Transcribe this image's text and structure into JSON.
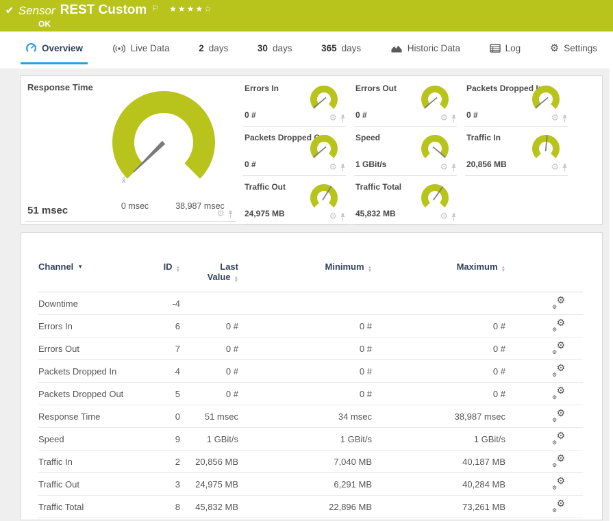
{
  "colors": {
    "green": "#b8c31b",
    "blue": "#2b9fd9",
    "navy": "#32425b"
  },
  "header": {
    "check": "✔",
    "kind": "Sensor",
    "name": "REST Custom",
    "flag": "⚐",
    "stars": "★★★★☆",
    "status": "OK"
  },
  "tabs": {
    "overview": "Overview",
    "live": "Live Data",
    "d2_num": "2",
    "d2": "days",
    "d30_num": "30",
    "d30": "days",
    "d365_num": "365",
    "d365": "days",
    "historic": "Historic Data",
    "log": "Log",
    "settings": "Settings"
  },
  "gauges": {
    "primary": {
      "title": "Response Time",
      "value": "51 msec",
      "min": "0 msec",
      "max": "38,987 msec",
      "mean": "x̄",
      "fraction": 0.0013
    },
    "small": [
      {
        "title": "Errors In",
        "value": "0 #",
        "fraction": 0.02
      },
      {
        "title": "Errors Out",
        "value": "0 #",
        "fraction": 0.02
      },
      {
        "title": "Packets Dropped In",
        "value": "0 #",
        "fraction": 0.02
      },
      {
        "title": "Packets Dropped Out",
        "value": "0 #",
        "fraction": 0.02
      },
      {
        "title": "Speed",
        "value": "1 GBit/s",
        "fraction": 0.98
      },
      {
        "title": "Traffic In",
        "value": "20,856 MB",
        "fraction": 0.52
      },
      {
        "title": "Traffic Out",
        "value": "24,975 MB",
        "fraction": 0.62
      },
      {
        "title": "Traffic Total",
        "value": "45,832 MB",
        "fraction": 0.63
      }
    ]
  },
  "table": {
    "columns": [
      "Channel",
      "ID",
      "Last Value",
      "Minimum",
      "Maximum"
    ],
    "rows": [
      {
        "channel": "Downtime",
        "id": "-4",
        "last": "",
        "min": "",
        "max": ""
      },
      {
        "channel": "Errors In",
        "id": "6",
        "last": "0 #",
        "min": "0 #",
        "max": "0 #"
      },
      {
        "channel": "Errors Out",
        "id": "7",
        "last": "0 #",
        "min": "0 #",
        "max": "0 #"
      },
      {
        "channel": "Packets Dropped In",
        "id": "4",
        "last": "0 #",
        "min": "0 #",
        "max": "0 #"
      },
      {
        "channel": "Packets Dropped Out",
        "id": "5",
        "last": "0 #",
        "min": "0 #",
        "max": "0 #"
      },
      {
        "channel": "Response Time",
        "id": "0",
        "last": "51 msec",
        "min": "34 msec",
        "max": "38,987 msec"
      },
      {
        "channel": "Speed",
        "id": "9",
        "last": "1 GBit/s",
        "min": "1 GBit/s",
        "max": "1 GBit/s"
      },
      {
        "channel": "Traffic In",
        "id": "2",
        "last": "20,856 MB",
        "min": "7,040 MB",
        "max": "40,187 MB"
      },
      {
        "channel": "Traffic Out",
        "id": "3",
        "last": "24,975 MB",
        "min": "6,291 MB",
        "max": "40,284 MB"
      },
      {
        "channel": "Traffic Total",
        "id": "8",
        "last": "45,832 MB",
        "min": "22,896 MB",
        "max": "73,261 MB"
      }
    ]
  }
}
